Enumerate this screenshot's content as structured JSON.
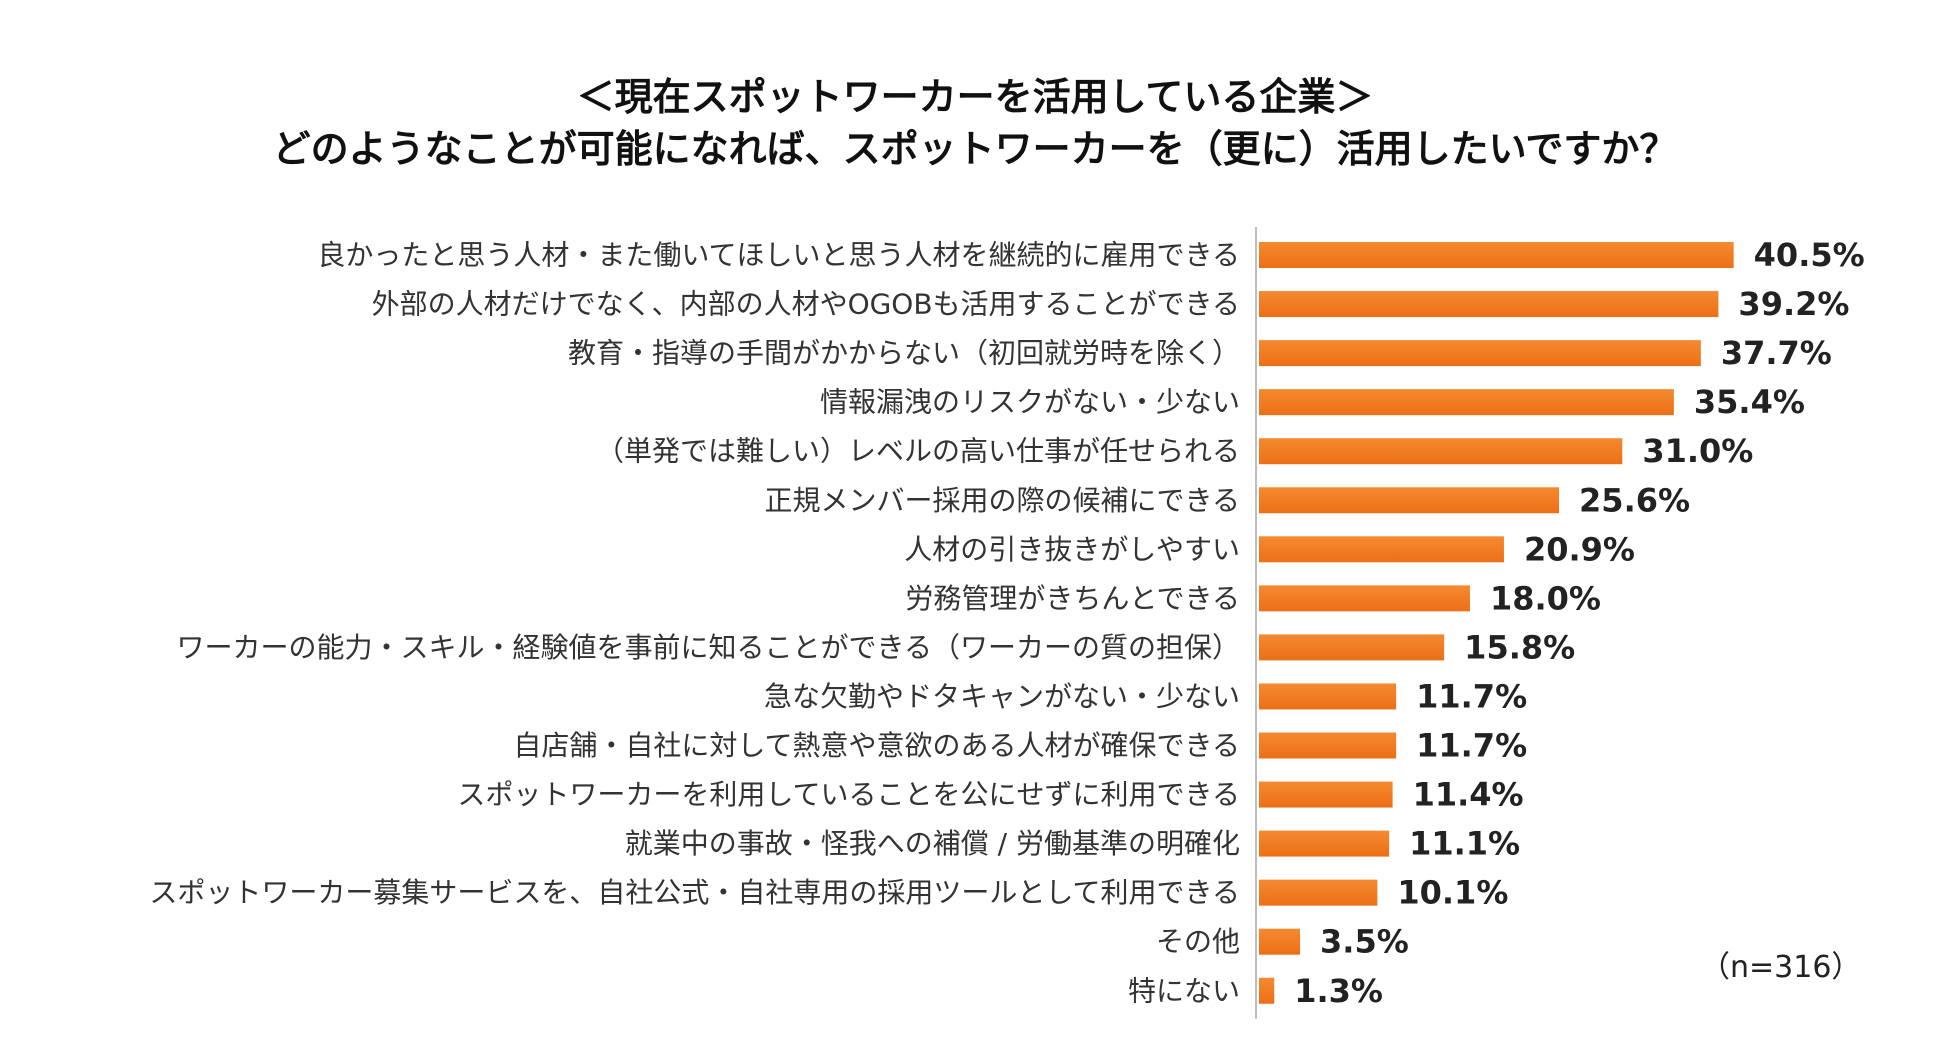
{
  "chart_data": {
    "type": "bar",
    "orientation": "horizontal",
    "title": "＜現在スポットワーカーを活用している企業＞",
    "subtitle": "どのようなことが可能になれば、スポットワーカーを（更に）活用したいですか？",
    "note": "（n=316）",
    "unit": "%",
    "xlim": [
      0,
      45
    ],
    "bar_color": "#F07A22",
    "categories": [
      "良かったと思う人材・また働いてほしいと思う人材を継続的に雇用できる",
      "外部の人材だけでなく、内部の人材やOGOBも活用することができる",
      "教育・指導の手間がかからない（初回就労時を除く）",
      "情報漏洩のリスクがない・少ない",
      "（単発では難しい）レベルの高い仕事が任せられる",
      "正規メンバー採用の際の候補にできる",
      "人材の引き抜きがしやすい",
      "労務管理がきちんとできる",
      "ワーカーの能力・スキル・経験値を事前に知ることができる（ワーカーの質の担保）",
      "急な欠勤やドタキャンがない・少ない",
      "自店舗・自社に対して熱意や意欲のある人材が確保できる",
      "スポットワーカーを利用していることを公にせずに利用できる",
      "就業中の事故・怪我への補償 / 労働基準の明確化",
      "スポットワーカー募集サービスを、自社公式・自社専用の採用ツールとして利用できる",
      "その他",
      "特にない"
    ],
    "values": [
      40.5,
      39.2,
      37.7,
      35.4,
      31.0,
      25.6,
      20.9,
      18.0,
      15.8,
      11.7,
      11.7,
      11.4,
      11.1,
      10.1,
      3.5,
      1.3
    ],
    "value_labels": [
      "40.5%",
      "39.2%",
      "37.7%",
      "35.4%",
      "31.0%",
      "25.6%",
      "20.9%",
      "18.0%",
      "15.8%",
      "11.7%",
      "11.7%",
      "11.4%",
      "11.1%",
      "10.1%",
      "3.5%",
      "1.3%"
    ]
  }
}
